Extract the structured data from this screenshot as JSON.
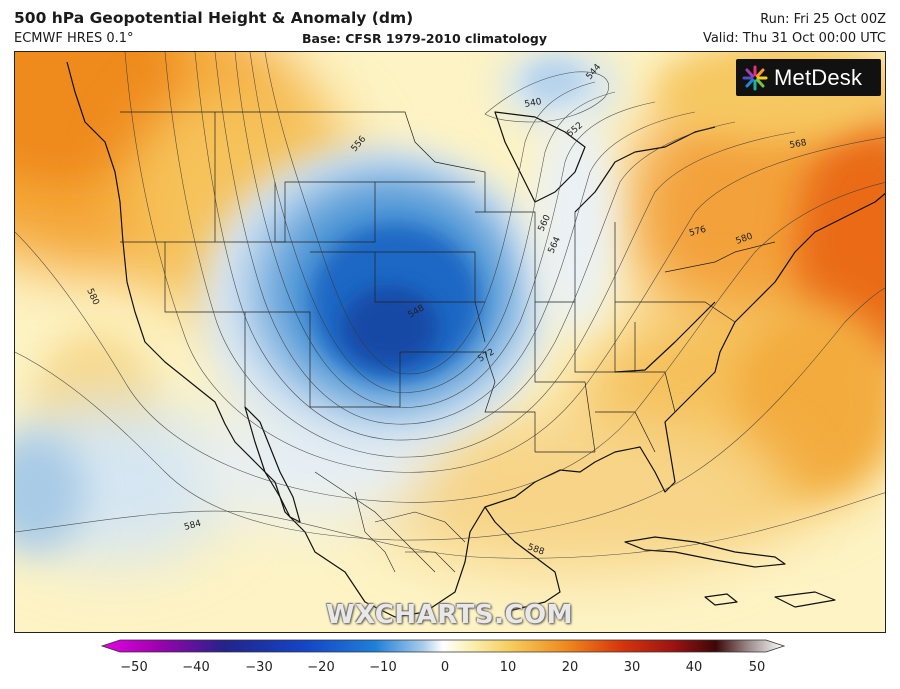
{
  "header": {
    "title": "500 hPa Geopotential Height & Anomaly (dm)",
    "model": "ECMWF HRES 0.1°",
    "base": "Base: CFSR 1979-2010 climatology",
    "run": "Run: Fri 25 Oct 00Z",
    "valid": "Valid: Thu 31 Oct 00:00 UTC"
  },
  "logo": {
    "text": "MetDesk",
    "icon": "metdesk-starburst-icon"
  },
  "watermark": "WXCHARTS.COM",
  "contour_labels": [
    {
      "text": "540"
    },
    {
      "text": "544"
    },
    {
      "text": "552"
    },
    {
      "text": "556"
    },
    {
      "text": "560"
    },
    {
      "text": "564"
    },
    {
      "text": "548"
    },
    {
      "text": "572"
    },
    {
      "text": "576"
    },
    {
      "text": "580"
    },
    {
      "text": "568"
    },
    {
      "text": "580"
    },
    {
      "text": "584"
    },
    {
      "text": "588"
    }
  ],
  "colorbar": {
    "min": -50,
    "max": 50,
    "ticks": [
      "−50",
      "−40",
      "−30",
      "−20",
      "−10",
      "0",
      "10",
      "20",
      "30",
      "40",
      "50"
    ],
    "colors": [
      "#e600e6",
      "#8c008c",
      "#1e1e96",
      "#1446c8",
      "#1e82dc",
      "#b4d2ec",
      "#ffffff",
      "#f8f0b4",
      "#f5c85a",
      "#f08c1e",
      "#dc3c0a",
      "#a01414",
      "#5a0a0a",
      "#ffffff"
    ]
  }
}
